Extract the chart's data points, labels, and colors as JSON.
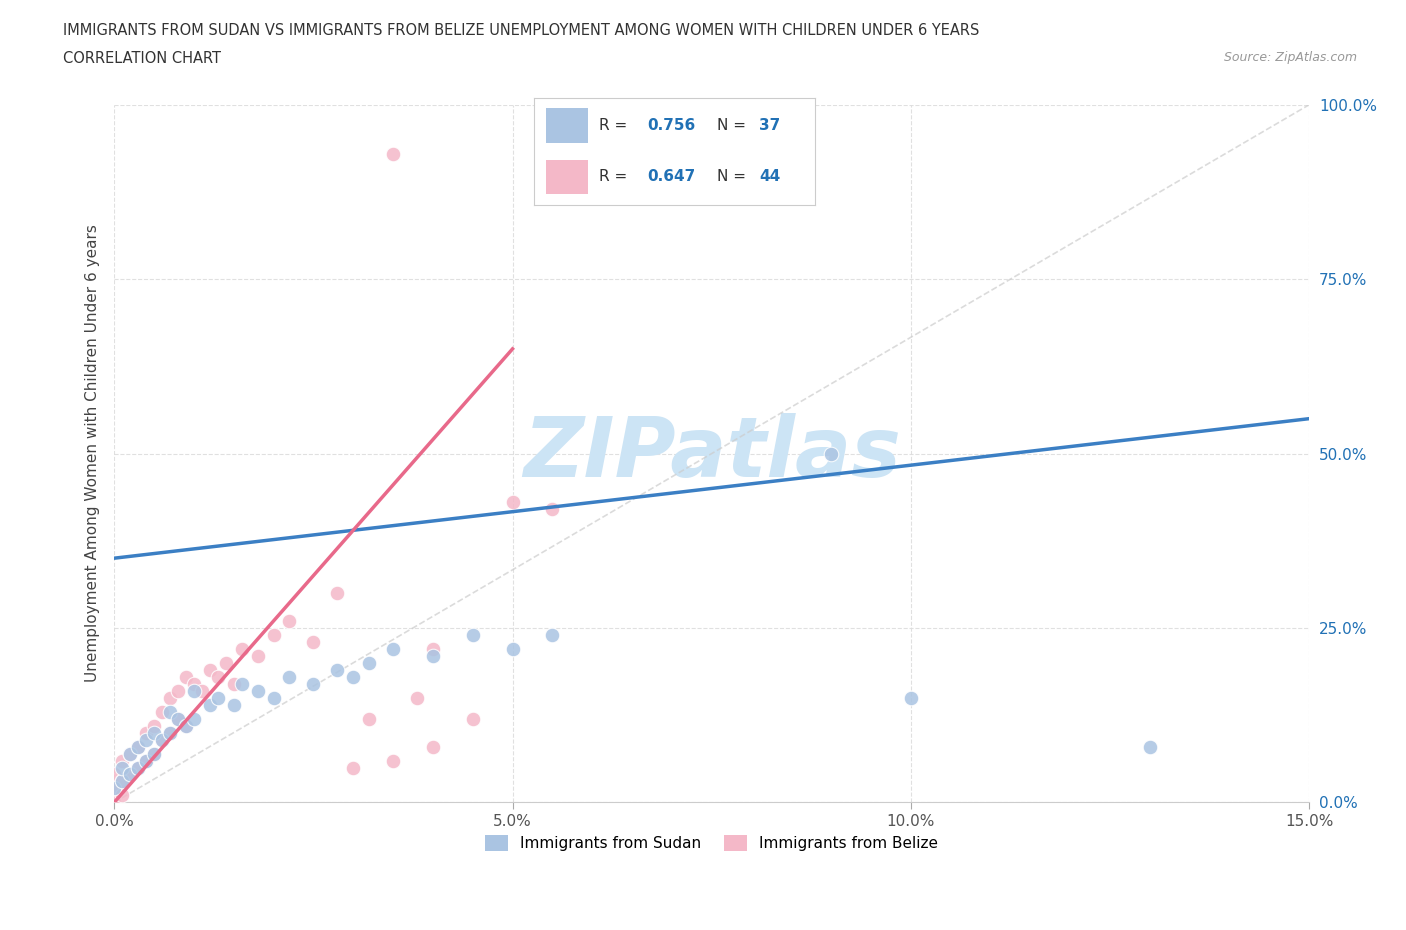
{
  "title_line1": "IMMIGRANTS FROM SUDAN VS IMMIGRANTS FROM BELIZE UNEMPLOYMENT AMONG WOMEN WITH CHILDREN UNDER 6 YEARS",
  "title_line2": "CORRELATION CHART",
  "source_text": "Source: ZipAtlas.com",
  "ylabel": "Unemployment Among Women with Children Under 6 years",
  "xlim": [
    0.0,
    0.15
  ],
  "ylim": [
    0.0,
    1.0
  ],
  "xticks": [
    0.0,
    0.05,
    0.1,
    0.15
  ],
  "xticklabels": [
    "0.0%",
    "5.0%",
    "10.0%",
    "15.0%"
  ],
  "yticks": [
    0.0,
    0.25,
    0.5,
    0.75,
    1.0
  ],
  "yticklabels": [
    "0.0%",
    "25.0%",
    "50.0%",
    "75.0%",
    "100.0%"
  ],
  "sudan_color": "#aac4e2",
  "belize_color": "#f4b8c8",
  "sudan_line_color": "#3b7fc4",
  "belize_line_color": "#e8698a",
  "diag_line_color": "#cccccc",
  "legend_R_color": "#2171b5",
  "watermark_text": "ZIPatlas",
  "watermark_color": "#cce4f5",
  "background_color": "#ffffff",
  "grid_color": "#dddddd",
  "sudan_R": 0.756,
  "sudan_N": 37,
  "belize_R": 0.647,
  "belize_N": 44,
  "sudan_line_x0": 0.0,
  "sudan_line_y0": 0.35,
  "sudan_line_x1": 0.15,
  "sudan_line_y1": 0.55,
  "belize_line_x0": 0.0,
  "belize_line_y0": 0.0,
  "belize_line_x1": 0.05,
  "belize_line_y1": 0.65,
  "sudan_points_x": [
    0.0,
    0.001,
    0.001,
    0.002,
    0.002,
    0.003,
    0.003,
    0.004,
    0.004,
    0.005,
    0.005,
    0.006,
    0.007,
    0.007,
    0.008,
    0.009,
    0.01,
    0.01,
    0.012,
    0.013,
    0.015,
    0.016,
    0.018,
    0.02,
    0.022,
    0.025,
    0.028,
    0.03,
    0.032,
    0.035,
    0.04,
    0.045,
    0.05,
    0.055,
    0.09,
    0.1,
    0.13
  ],
  "sudan_points_y": [
    0.02,
    0.03,
    0.05,
    0.04,
    0.07,
    0.05,
    0.08,
    0.06,
    0.09,
    0.07,
    0.1,
    0.09,
    0.1,
    0.13,
    0.12,
    0.11,
    0.12,
    0.16,
    0.14,
    0.15,
    0.14,
    0.17,
    0.16,
    0.15,
    0.18,
    0.17,
    0.19,
    0.18,
    0.2,
    0.22,
    0.21,
    0.24,
    0.22,
    0.24,
    0.5,
    0.15,
    0.08
  ],
  "belize_points_x": [
    0.0,
    0.0,
    0.0,
    0.001,
    0.001,
    0.001,
    0.002,
    0.002,
    0.003,
    0.003,
    0.004,
    0.004,
    0.005,
    0.005,
    0.006,
    0.006,
    0.007,
    0.007,
    0.008,
    0.008,
    0.009,
    0.009,
    0.01,
    0.011,
    0.012,
    0.013,
    0.014,
    0.015,
    0.016,
    0.018,
    0.02,
    0.022,
    0.025,
    0.028,
    0.03,
    0.032,
    0.035,
    0.038,
    0.04,
    0.04,
    0.045,
    0.05,
    0.055,
    0.035
  ],
  "belize_points_y": [
    0.0,
    0.02,
    0.04,
    0.01,
    0.03,
    0.06,
    0.04,
    0.07,
    0.05,
    0.08,
    0.06,
    0.1,
    0.07,
    0.11,
    0.09,
    0.13,
    0.1,
    0.15,
    0.12,
    0.16,
    0.11,
    0.18,
    0.17,
    0.16,
    0.19,
    0.18,
    0.2,
    0.17,
    0.22,
    0.21,
    0.24,
    0.26,
    0.23,
    0.3,
    0.05,
    0.12,
    0.06,
    0.15,
    0.08,
    0.22,
    0.12,
    0.43,
    0.42,
    0.93
  ]
}
